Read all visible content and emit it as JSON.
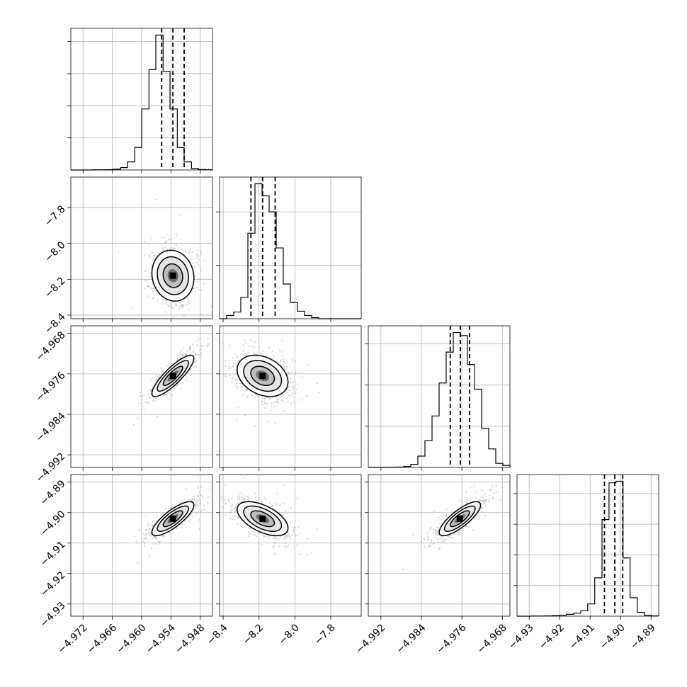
{
  "chart_data": {
    "type": "corner",
    "grid": true,
    "parameters": [
      {
        "range": [
          -4.9745,
          -4.9455
        ],
        "ticks": [
          -4.972,
          -4.966,
          -4.96,
          -4.954,
          -4.948
        ],
        "tick_labels": [
          "−4.972",
          "−4.966",
          "−4.960",
          "−4.954",
          "−4.948"
        ],
        "quantiles": [
          -4.9559,
          -4.9536,
          -4.9513
        ],
        "mean": -4.9536,
        "sd": 0.002,
        "histogram": {
          "edges": [
            -4.9745,
            -4.973,
            -4.9716,
            -4.9701,
            -4.9687,
            -4.9672,
            -4.9658,
            -4.9643,
            -4.9629,
            -4.9614,
            -4.96,
            -4.9585,
            -4.9571,
            -4.9556,
            -4.9542,
            -4.9527,
            -4.9513,
            -4.9498,
            -4.9484,
            -4.9469,
            -4.9455
          ],
          "counts": [
            0,
            0,
            0,
            1,
            1,
            2,
            5,
            15,
            50,
            140,
            380,
            625,
            840,
            615,
            380,
            140,
            50,
            10,
            3,
            1
          ]
        }
      },
      {
        "range": [
          -8.42,
          -7.63
        ],
        "ticks": [
          -8.4,
          -8.2,
          -8.0,
          -7.8
        ],
        "tick_labels": [
          "−8.4",
          "−8.2",
          "−8.0",
          "−7.8"
        ],
        "quantiles": [
          -8.245,
          -8.18,
          -8.11
        ],
        "mean": -8.18,
        "sd": 0.066,
        "histogram": {
          "edges": [
            -8.42,
            -8.3805,
            -8.341,
            -8.3015,
            -8.262,
            -8.2225,
            -8.183,
            -8.1435,
            -8.104,
            -8.0645,
            -8.025,
            -7.9855,
            -7.946,
            -7.9065,
            -7.867,
            -7.8275,
            -7.788,
            -7.7485,
            -7.709,
            -7.6695,
            -7.63
          ],
          "counts": [
            0,
            12,
            25,
            80,
            320,
            505,
            460,
            400,
            265,
            130,
            60,
            28,
            12,
            4,
            0,
            0,
            0,
            0,
            0,
            0
          ]
        }
      },
      {
        "range": [
          -4.9945,
          -4.9665
        ],
        "ticks": [
          -4.992,
          -4.984,
          -4.976,
          -4.968
        ],
        "tick_labels": [
          "−4.992",
          "−4.984",
          "−4.976",
          "−4.968"
        ],
        "quantiles": [
          -4.9783,
          -4.9763,
          -4.9745
        ],
        "mean": -4.9764,
        "sd": 0.0019,
        "histogram": {
          "edges": [
            -4.9945,
            -4.9931,
            -4.9917,
            -4.9903,
            -4.9889,
            -4.9875,
            -4.9861,
            -4.9847,
            -4.9833,
            -4.9819,
            -4.9805,
            -4.9791,
            -4.9777,
            -4.9763,
            -4.9749,
            -4.9735,
            -4.9721,
            -4.9707,
            -4.9693,
            -4.9679,
            -4.9665
          ],
          "counts": [
            0,
            0,
            1,
            1,
            2,
            5,
            15,
            55,
            130,
            250,
            410,
            560,
            655,
            640,
            500,
            380,
            190,
            90,
            20,
            10
          ]
        }
      },
      {
        "range": [
          -4.934,
          -4.8875
        ],
        "ticks": [
          -4.93,
          -4.92,
          -4.91,
          -4.9,
          -4.89
        ],
        "tick_labels": [
          "−4.93",
          "−4.92",
          "−4.91",
          "−4.90",
          "−4.89"
        ],
        "quantiles": [
          -4.9053,
          -4.9019,
          -4.8993
        ],
        "mean": -4.902,
        "sd": 0.0026,
        "histogram": {
          "edges": [
            -4.934,
            -4.9317,
            -4.9294,
            -4.9271,
            -4.9248,
            -4.9224,
            -4.9201,
            -4.9178,
            -4.9154,
            -4.9131,
            -4.9108,
            -4.9085,
            -4.9061,
            -4.9038,
            -4.9015,
            -4.8992,
            -4.8969,
            -4.8945,
            -4.8922,
            -4.8899,
            -4.8875
          ],
          "counts": [
            0,
            0,
            1,
            1,
            2,
            4,
            6,
            12,
            20,
            35,
            80,
            250,
            630,
            870,
            880,
            380,
            120,
            25,
            5,
            2
          ]
        }
      }
    ],
    "pairs": [
      {
        "row": 1,
        "col": 0,
        "corr": -0.1
      },
      {
        "row": 2,
        "col": 0,
        "corr": 0.85
      },
      {
        "row": 2,
        "col": 1,
        "corr": -0.3
      },
      {
        "row": 3,
        "col": 0,
        "corr": 0.8
      },
      {
        "row": 3,
        "col": 1,
        "corr": -0.55
      },
      {
        "row": 3,
        "col": 2,
        "corr": 0.8
      }
    ],
    "contour_sigmas": [
      1.0,
      1.6,
      2.15
    ]
  }
}
